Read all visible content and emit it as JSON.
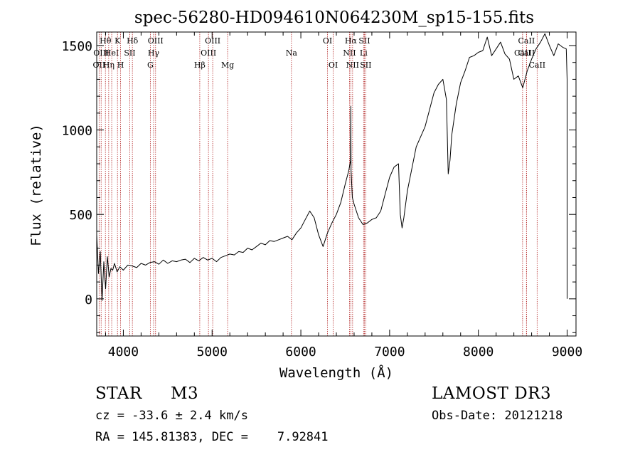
{
  "chart_data": {
    "type": "line",
    "title": "spec-56280-HD094610N064230M_sp15-155.fits",
    "xlabel": "Wavelength (Å)",
    "ylabel": "Flux (relative)",
    "xlim": [
      3700,
      9100
    ],
    "ylim": [
      -220,
      1580
    ],
    "x_ticks": [
      4000,
      5000,
      6000,
      7000,
      8000,
      9000
    ],
    "x_tick_labels": [
      "4000",
      "5000",
      "6000",
      "7000",
      "8000",
      "9000"
    ],
    "y_ticks": [
      0,
      500,
      1000,
      1500
    ],
    "y_tick_labels": [
      "0",
      "500",
      "1000",
      "1500"
    ],
    "grid": false,
    "series": [
      {
        "name": "spectrum",
        "x": [
          3700,
          3720,
          3740,
          3760,
          3780,
          3800,
          3820,
          3840,
          3860,
          3880,
          3900,
          3930,
          3960,
          4000,
          4050,
          4100,
          4150,
          4200,
          4250,
          4300,
          4350,
          4400,
          4450,
          4500,
          4550,
          4600,
          4650,
          4700,
          4750,
          4800,
          4850,
          4900,
          4950,
          5000,
          5050,
          5100,
          5150,
          5200,
          5250,
          5300,
          5350,
          5400,
          5450,
          5500,
          5550,
          5600,
          5650,
          5700,
          5750,
          5800,
          5850,
          5900,
          5950,
          6000,
          6050,
          6100,
          6150,
          6200,
          6250,
          6300,
          6350,
          6400,
          6450,
          6500,
          6540,
          6560,
          6563,
          6566,
          6580,
          6600,
          6650,
          6700,
          6750,
          6800,
          6850,
          6900,
          6950,
          7000,
          7050,
          7100,
          7120,
          7140,
          7160,
          7200,
          7300,
          7400,
          7500,
          7550,
          7600,
          7640,
          7660,
          7680,
          7700,
          7750,
          7800,
          7850,
          7900,
          7950,
          8000,
          8050,
          8100,
          8150,
          8200,
          8250,
          8300,
          8350,
          8400,
          8450,
          8500,
          8550,
          8600,
          8650,
          8700,
          8750,
          8800,
          8850,
          8900,
          8950,
          8990,
          9000,
          9000
        ],
        "y": [
          380,
          150,
          280,
          -10,
          220,
          60,
          250,
          130,
          180,
          170,
          210,
          160,
          190,
          170,
          200,
          195,
          185,
          210,
          200,
          215,
          220,
          205,
          230,
          210,
          225,
          220,
          230,
          235,
          215,
          240,
          225,
          245,
          230,
          240,
          220,
          245,
          255,
          265,
          260,
          280,
          275,
          300,
          290,
          310,
          330,
          320,
          345,
          340,
          350,
          360,
          370,
          350,
          390,
          420,
          470,
          520,
          480,
          380,
          310,
          390,
          450,
          500,
          570,
          680,
          760,
          820,
          1140,
          760,
          600,
          560,
          480,
          440,
          450,
          470,
          480,
          520,
          620,
          720,
          780,
          800,
          500,
          420,
          480,
          640,
          900,
          1020,
          1220,
          1270,
          1300,
          1180,
          740,
          820,
          970,
          1150,
          1280,
          1350,
          1430,
          1440,
          1460,
          1470,
          1550,
          1440,
          1480,
          1520,
          1450,
          1420,
          1300,
          1320,
          1250,
          1350,
          1420,
          1480,
          1520,
          1570,
          1500,
          1440,
          1510,
          1490,
          1480,
          1300,
          0
        ]
      }
    ],
    "lines": [
      {
        "wavelength": 3727,
        "label": "OII",
        "row": 2
      },
      {
        "wavelength": 3750,
        "label": "OIII",
        "row": 1
      },
      {
        "wavelength": 3798,
        "label": "Hθ",
        "row": 0
      },
      {
        "wavelength": 3835,
        "label": "Hη",
        "row": 2
      },
      {
        "wavelength": 3869,
        "label": "HeI",
        "row": 1
      },
      {
        "wavelength": 3934,
        "label": "K",
        "row": 0
      },
      {
        "wavelength": 3969,
        "label": "H",
        "row": 2
      },
      {
        "wavelength": 4072,
        "label": "SII",
        "row": 1
      },
      {
        "wavelength": 4102,
        "label": "Hδ",
        "row": 0
      },
      {
        "wavelength": 4304,
        "label": "G",
        "row": 2
      },
      {
        "wavelength": 4341,
        "label": "Hγ",
        "row": 1
      },
      {
        "wavelength": 4363,
        "label": "OIII",
        "row": 0
      },
      {
        "wavelength": 4861,
        "label": "Hβ",
        "row": 2
      },
      {
        "wavelength": 4959,
        "label": "OIII",
        "row": 1
      },
      {
        "wavelength": 5007,
        "label": "OIII",
        "row": 0
      },
      {
        "wavelength": 5175,
        "label": "Mg",
        "row": 2
      },
      {
        "wavelength": 5894,
        "label": "Na",
        "row": 1
      },
      {
        "wavelength": 6300,
        "label": "OI",
        "row": 0
      },
      {
        "wavelength": 6364,
        "label": "OI",
        "row": 2
      },
      {
        "wavelength": 6548,
        "label": "NII",
        "row": 1
      },
      {
        "wavelength": 6563,
        "label": "Hα",
        "row": 0
      },
      {
        "wavelength": 6583,
        "label": "NII",
        "row": 2
      },
      {
        "wavelength": 6707,
        "label": "Li",
        "row": 1
      },
      {
        "wavelength": 6716,
        "label": "SII",
        "row": 0
      },
      {
        "wavelength": 6731,
        "label": "SII",
        "row": 2
      },
      {
        "wavelength": 8498,
        "label": "CaII",
        "row": 1
      },
      {
        "wavelength": 8542,
        "label": "CaII",
        "row": 0
      },
      {
        "wavelength": 8542,
        "label": "CaII",
        "row": 1
      },
      {
        "wavelength": 8662,
        "label": "CaII",
        "row": 2
      }
    ]
  },
  "info": {
    "object_class": "STAR",
    "subclass": "M3",
    "survey": "LAMOST DR3",
    "redshift_line": "cz = -33.6 ± 2.4 km/s",
    "obs_date": "Obs-Date: 20121218",
    "coords": "RA = 145.81383, DEC =    7.92841"
  },
  "colors": {
    "axis": "#000000",
    "spectrum": "#000000",
    "line_marker": "#b22222"
  }
}
